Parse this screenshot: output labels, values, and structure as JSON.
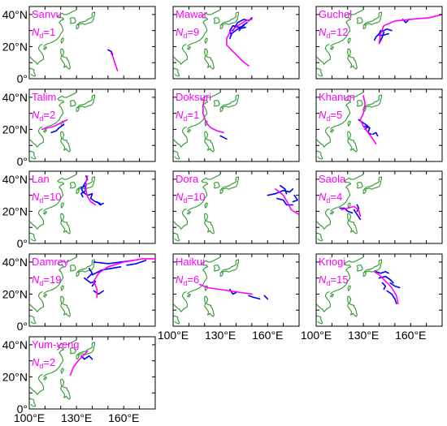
{
  "chart_data": {
    "type": "map-panels",
    "projection": "lon-lat",
    "xlim": [
      100,
      180
    ],
    "ylim": [
      0,
      45
    ],
    "x_ticks": [
      {
        "value": 100,
        "label": "100°E"
      },
      {
        "value": 130,
        "label": "130°E"
      },
      {
        "value": 160,
        "label": "160°E"
      }
    ],
    "y_ticks": [
      {
        "value": 0,
        "label": "0°"
      },
      {
        "value": 20,
        "label": "20°N"
      },
      {
        "value": 40,
        "label": "40°N"
      }
    ],
    "colors": {
      "main_track": "#ff00ff",
      "branch_tracks": "#0000ff",
      "coastline": "#2e9a2e",
      "label_text": "#ff00ff"
    },
    "nd_prefix": "N",
    "nd_subscript": "d",
    "panels": [
      {
        "name": "Sanvu",
        "nd": "=1",
        "main": [
          [
            152,
            16
          ],
          [
            153,
            14
          ],
          [
            154,
            11
          ],
          [
            155,
            8
          ],
          [
            156,
            5
          ]
        ],
        "branches": [
          [
            [
              150,
              18
            ],
            [
              152,
              17
            ],
            [
              153,
              15
            ]
          ]
        ]
      },
      {
        "name": "Mawar",
        "nd": "=9",
        "main": [
          [
            148,
            8
          ],
          [
            144,
            11
          ],
          [
            140,
            15
          ],
          [
            137,
            18
          ],
          [
            134,
            21
          ],
          [
            134,
            25
          ],
          [
            136,
            29
          ],
          [
            141,
            33
          ],
          [
            146,
            36
          ],
          [
            150,
            37
          ]
        ],
        "branches": [
          [
            [
              137,
              27
            ],
            [
              136,
              30
            ],
            [
              138,
              33
            ],
            [
              142,
              32
            ],
            [
              145,
              33
            ]
          ],
          [
            [
              136,
              25
            ],
            [
              137,
              28
            ],
            [
              141,
              31
            ],
            [
              146,
              32
            ]
          ],
          [
            [
              138,
              30
            ],
            [
              141,
              35
            ],
            [
              145,
              37
            ],
            [
              148,
              36
            ],
            [
              150,
              38
            ]
          ],
          [
            [
              142,
              30
            ],
            [
              144,
              33
            ],
            [
              147,
              35
            ]
          ]
        ]
      },
      {
        "name": "Guchol",
        "nd": "=12",
        "main": [
          [
            140,
            22
          ],
          [
            141,
            28
          ],
          [
            143,
            33
          ],
          [
            150,
            36
          ],
          [
            160,
            37
          ],
          [
            172,
            38
          ],
          [
            180,
            40
          ]
        ],
        "branches": [
          [
            [
              140,
              22
            ],
            [
              142,
              26
            ],
            [
              143,
              29
            ]
          ],
          [
            [
              137,
              24
            ],
            [
              138,
              26
            ],
            [
              140,
              28
            ],
            [
              141,
              30
            ]
          ],
          [
            [
              141,
              29
            ],
            [
              145,
              31
            ],
            [
              148,
              30
            ]
          ],
          [
            [
              140,
              27
            ],
            [
              142,
              27
            ],
            [
              146,
              28
            ]
          ],
          [
            [
              155,
              37
            ],
            [
              157,
              35
            ],
            [
              159,
              37
            ]
          ]
        ]
      },
      {
        "name": "Talim",
        "nd": "=2",
        "main": [
          [
            124,
            26
          ],
          [
            120,
            24
          ],
          [
            116,
            22
          ],
          [
            112,
            21
          ],
          [
            108,
            20
          ]
        ],
        "branches": [
          [
            [
              122,
              23
            ],
            [
              119,
              21
            ],
            [
              117,
              19
            ],
            [
              114,
              18
            ]
          ]
        ]
      },
      {
        "name": "Doksuri",
        "nd": "=1",
        "main": [
          [
            120,
            40
          ],
          [
            119,
            35
          ],
          [
            119,
            30
          ],
          [
            120,
            27
          ],
          [
            121,
            24
          ],
          [
            124,
            21
          ],
          [
            128,
            19
          ],
          [
            132,
            18
          ]
        ],
        "branches": [
          [
            [
              130,
              16
            ],
            [
              132,
              15
            ],
            [
              134,
              14
            ]
          ]
        ]
      },
      {
        "name": "Khanun",
        "nd": "=5",
        "main": [
          [
            130,
            41
          ],
          [
            131,
            36
          ],
          [
            130,
            30
          ],
          [
            128,
            26
          ],
          [
            130,
            22
          ],
          [
            133,
            18
          ],
          [
            136,
            14
          ],
          [
            138,
            11
          ]
        ],
        "branches": [
          [
            [
              127,
              26
            ],
            [
              130,
              24
            ],
            [
              133,
              22
            ],
            [
              131,
              20
            ]
          ],
          [
            [
              131,
              22
            ],
            [
              134,
              21
            ],
            [
              133,
              18
            ],
            [
              135,
              17
            ]
          ],
          [
            [
              136,
              17
            ],
            [
              138,
              18
            ],
            [
              139,
              16
            ]
          ]
        ]
      },
      {
        "name": "Lan",
        "nd": "=10",
        "main": [
          [
            137,
            42
          ],
          [
            136,
            38
          ],
          [
            136,
            33
          ],
          [
            137,
            29
          ],
          [
            139,
            26
          ],
          [
            142,
            24
          ]
        ],
        "branches": [
          [
            [
              133,
              35
            ],
            [
              134,
              32
            ],
            [
              137,
              30
            ],
            [
              140,
              31
            ],
            [
              139,
              28
            ],
            [
              142,
              26
            ],
            [
              145,
              25
            ]
          ],
          [
            [
              135,
              36
            ],
            [
              136,
              33
            ],
            [
              133,
              31
            ],
            [
              134,
              29
            ]
          ],
          [
            [
              143,
              26
            ],
            [
              145,
              24
            ],
            [
              147,
              25
            ]
          ],
          [
            [
              136,
              42
            ],
            [
              137,
              40
            ],
            [
              135,
              37
            ],
            [
              134,
              35
            ]
          ]
        ]
      },
      {
        "name": "Dora",
        "nd": "=10",
        "main": [
          [
            165,
            34
          ],
          [
            170,
            30
          ],
          [
            173,
            25
          ],
          [
            175,
            21
          ],
          [
            180,
            18
          ]
        ],
        "branches": [
          [
            [
              160,
              30
            ],
            [
              165,
              31
            ],
            [
              170,
              33
            ],
            [
              174,
              32
            ],
            [
              176,
              34
            ]
          ],
          [
            [
              166,
              28
            ],
            [
              170,
              27
            ],
            [
              172,
              24
            ],
            [
              176,
              24
            ]
          ],
          [
            [
              168,
              36
            ],
            [
              171,
              34
            ],
            [
              172,
              31
            ]
          ],
          [
            [
              177,
              30
            ],
            [
              179,
              27
            ],
            [
              176,
              26
            ]
          ]
        ]
      },
      {
        "name": "Saola",
        "nd": "=4",
        "main": [
          [
            116,
            21
          ],
          [
            120,
            22
          ],
          [
            124,
            23
          ],
          [
            127,
            21
          ],
          [
            128,
            17
          ]
        ],
        "branches": [
          [
            [
              115,
              22
            ],
            [
              118,
              22
            ],
            [
              120,
              20
            ],
            [
              123,
              19
            ]
          ],
          [
            [
              124,
              21
            ],
            [
              126,
              18
            ],
            [
              128,
              15
            ]
          ],
          [
            [
              126,
              24
            ],
            [
              127,
              22
            ],
            [
              126,
              20
            ]
          ]
        ]
      },
      {
        "name": "Damrey",
        "nd": "=19",
        "main": [
          [
            143,
            18
          ],
          [
            143,
            23
          ],
          [
            141,
            28
          ],
          [
            144,
            33
          ],
          [
            150,
            37
          ],
          [
            160,
            40
          ],
          [
            172,
            42
          ],
          [
            180,
            42
          ]
        ],
        "branches": [
          [
            [
              140,
              32
            ],
            [
              146,
              35
            ],
            [
              152,
              36
            ],
            [
              158,
              37
            ]
          ],
          [
            [
              141,
              40
            ],
            [
              150,
              39
            ],
            [
              158,
              40
            ],
            [
              166,
              41
            ]
          ],
          [
            [
              135,
              30
            ],
            [
              139,
              27
            ],
            [
              142,
              28
            ],
            [
              140,
              25
            ]
          ],
          [
            [
              141,
              22
            ],
            [
              144,
              20
            ],
            [
              147,
              22
            ]
          ],
          [
            [
              138,
              36
            ],
            [
              140,
              33
            ],
            [
              137,
              30
            ]
          ],
          [
            [
              162,
              38
            ],
            [
              168,
              39
            ],
            [
              174,
              41
            ]
          ]
        ]
      },
      {
        "name": "Haikui",
        "nd": "=6",
        "main": [
          [
            150,
            20
          ],
          [
            143,
            21
          ],
          [
            136,
            22
          ],
          [
            129,
            23
          ],
          [
            122,
            24
          ],
          [
            117,
            26
          ]
        ],
        "branches": [
          [
            [
              148,
              19
            ],
            [
              151,
              18
            ],
            [
              155,
              17
            ]
          ],
          [
            [
              136,
              23
            ],
            [
              138,
              20
            ],
            [
              140,
              21
            ]
          ],
          [
            [
              158,
              19
            ],
            [
              160,
              17
            ]
          ]
        ]
      },
      {
        "name": "Kriogi",
        "nd": "=15",
        "main": [
          [
            152,
            14
          ],
          [
            151,
            19
          ],
          [
            148,
            24
          ],
          [
            144,
            28
          ],
          [
            140,
            32
          ],
          [
            137,
            34
          ]
        ],
        "branches": [
          [
            [
              140,
              30
            ],
            [
              144,
              31
            ],
            [
              147,
              29
            ],
            [
              149,
              27
            ]
          ],
          [
            [
              145,
              22
            ],
            [
              148,
              20
            ],
            [
              150,
              17
            ],
            [
              151,
              14
            ]
          ],
          [
            [
              138,
              34
            ],
            [
              141,
              33
            ],
            [
              144,
              34
            ],
            [
              146,
              33
            ]
          ],
          [
            [
              147,
              27
            ],
            [
              150,
              25
            ],
            [
              153,
              24
            ]
          ],
          [
            [
              142,
              27
            ],
            [
              144,
              25
            ],
            [
              143,
              23
            ]
          ]
        ]
      },
      {
        "name": "Yum-yeng",
        "nd": "=2",
        "main": [
          [
            126,
            21
          ],
          [
            128,
            26
          ],
          [
            131,
            30
          ],
          [
            135,
            34
          ],
          [
            137,
            36
          ]
        ],
        "branches": [
          [
            [
              133,
              33
            ],
            [
              135,
              31
            ],
            [
              138,
              33
            ],
            [
              140,
              31
            ]
          ]
        ]
      }
    ]
  }
}
